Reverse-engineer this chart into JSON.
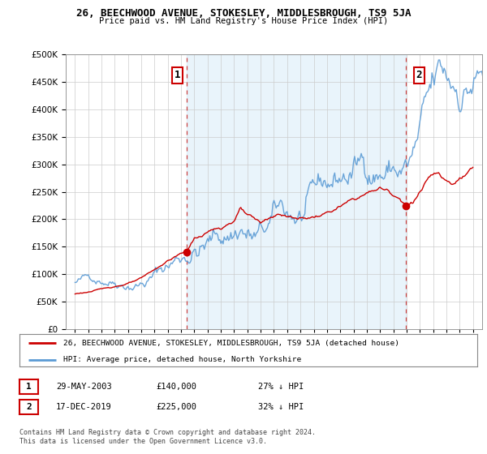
{
  "title": "26, BEECHWOOD AVENUE, STOKESLEY, MIDDLESBROUGH, TS9 5JA",
  "subtitle": "Price paid vs. HM Land Registry's House Price Index (HPI)",
  "hpi_label": "HPI: Average price, detached house, North Yorkshire",
  "price_label": "26, BEECHWOOD AVENUE, STOKESLEY, MIDDLESBROUGH, TS9 5JA (detached house)",
  "legend_entry1_date": "29-MAY-2003",
  "legend_entry1_price": "£140,000",
  "legend_entry1_hpi": "27% ↓ HPI",
  "legend_entry2_date": "17-DEC-2019",
  "legend_entry2_price": "£225,000",
  "legend_entry2_hpi": "32% ↓ HPI",
  "footer": "Contains HM Land Registry data © Crown copyright and database right 2024.\nThis data is licensed under the Open Government Licence v3.0.",
  "hpi_color": "#5b9bd5",
  "fill_color": "#ddeeff",
  "price_color": "#cc0000",
  "annotation_bg": "#ffffff",
  "annotation_border": "#cc0000",
  "ylim": [
    0,
    500000
  ],
  "yticks": [
    0,
    50000,
    100000,
    150000,
    200000,
    250000,
    300000,
    350000,
    400000,
    450000,
    500000
  ],
  "sale1_year": 2003.41,
  "sale1_price": 140000,
  "sale2_year": 2019.95,
  "sale2_price": 225000,
  "sale1_label": "1",
  "sale2_label": "2",
  "background_color": "#ffffff",
  "grid_color": "#cccccc"
}
